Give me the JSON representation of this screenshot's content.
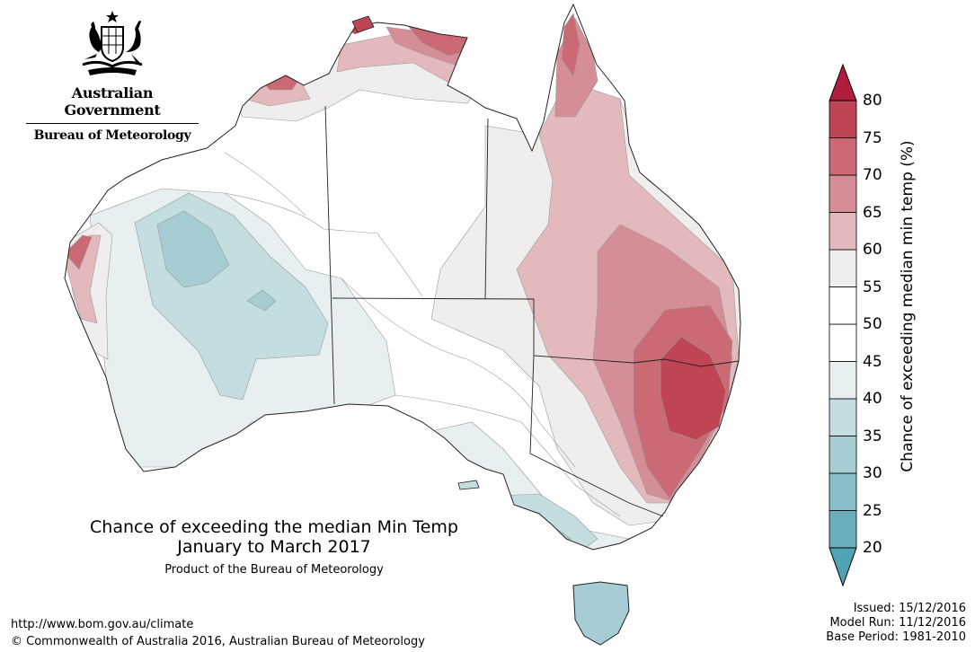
{
  "header": {
    "gov_name": "Australian Government",
    "agency": "Bureau of Meteorology"
  },
  "title": {
    "line1": "Chance of exceeding the median Min Temp",
    "line2": "January to March 2017",
    "line3": "Product of the Bureau of Meteorology"
  },
  "footer": {
    "url": "http://www.bom.gov.au/climate",
    "copyright": "© Commonwealth of Australia 2016, Australian Bureau of Meteorology"
  },
  "meta": {
    "issued": "Issued: 15/12/2016",
    "model_run": "Model Run: 11/12/2016",
    "base_period": "Base Period: 1981-2010"
  },
  "legend": {
    "label": "Chance of exceeding median min temp (%)",
    "ticks": [
      "80",
      "75",
      "70",
      "65",
      "60",
      "55",
      "50",
      "45",
      "40",
      "35",
      "30",
      "25",
      "20"
    ],
    "bins": [
      {
        "range": "20-25",
        "color": "#6aaebb"
      },
      {
        "range": "25-30",
        "color": "#88bec8"
      },
      {
        "range": "30-35",
        "color": "#a6cdd3"
      },
      {
        "range": "35-40",
        "color": "#c4dde0"
      },
      {
        "range": "40-45",
        "color": "#e8eff0"
      },
      {
        "range": "45-50",
        "color": "#ffffff"
      },
      {
        "range": "50-55",
        "color": "#ffffff"
      },
      {
        "range": "55-60",
        "color": "#efeeec"
      },
      {
        "range": "60-65",
        "color": "#e3b9bd"
      },
      {
        "range": "65-70",
        "color": "#d68e96"
      },
      {
        "range": "70-75",
        "color": "#cb6a75"
      },
      {
        "range": "75-80",
        "color": "#bf4555"
      }
    ],
    "over_color": "#b11d3d",
    "under_color": "#4fa3b4"
  }
}
